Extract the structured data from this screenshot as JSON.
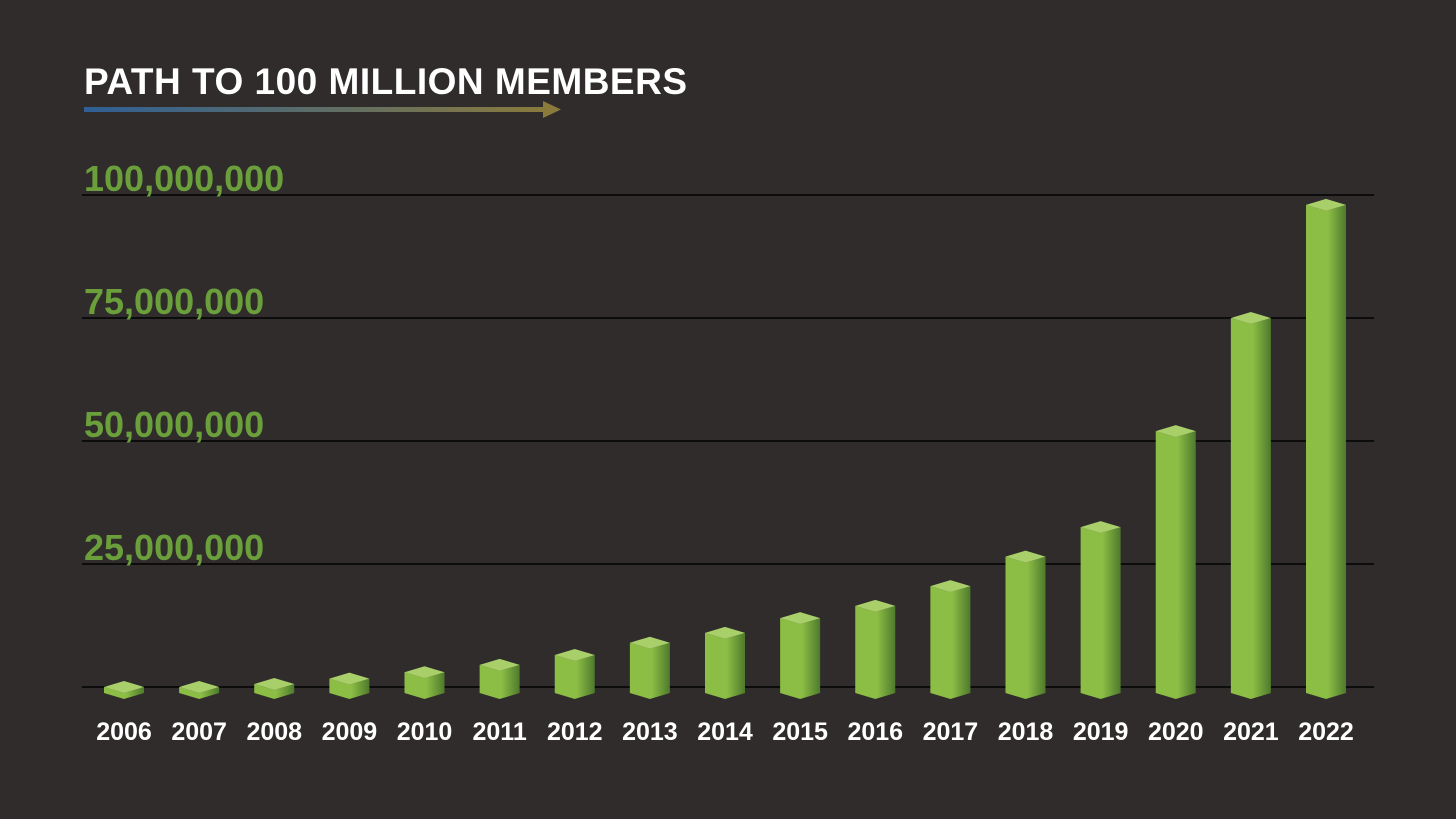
{
  "chart_data": {
    "type": "bar",
    "title": "PATH TO 100 MILLION MEMBERS",
    "xlabel": "",
    "ylabel": "",
    "categories": [
      "2006",
      "2007",
      "2008",
      "2009",
      "2010",
      "2011",
      "2012",
      "2013",
      "2014",
      "2015",
      "2016",
      "2017",
      "2018",
      "2019",
      "2020",
      "2021",
      "2022"
    ],
    "values": [
      0,
      0,
      600000,
      1700000,
      3000000,
      4500000,
      6500000,
      9000000,
      11000000,
      14000000,
      16500000,
      20500000,
      26500000,
      32500000,
      52000000,
      75000000,
      98000000
    ],
    "ylim": [
      0,
      100000000
    ],
    "y_ticks": [
      25000000,
      50000000,
      75000000,
      100000000
    ],
    "y_tick_labels": [
      "25,000,000",
      "50,000,000",
      "75,000,000",
      "100,000,000"
    ],
    "grid": true,
    "legend": "none",
    "colors": {
      "background": "#2f2c2b",
      "bar_front_left": "#8cbd45",
      "bar_front_right": "#4e7a2c",
      "bar_top": "#a8cf6a",
      "tick_label": "#6a9f3b",
      "category_label": "#ffffff",
      "gridline": "#0d0c0c",
      "arrow_start": "#2f5f94",
      "arrow_end": "#8a7a3c"
    }
  }
}
